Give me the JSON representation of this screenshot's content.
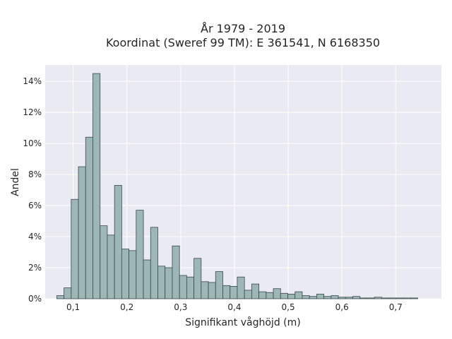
{
  "chart_data": {
    "type": "bar",
    "title_line1": "År 1979 - 2019",
    "title_line2": "Koordinat (Sweref 99 TM): E 361541, N 6168350",
    "xlabel": "Signifikant våghöjd (m)",
    "ylabel": "Andel",
    "xlim": [
      0.048,
      0.785
    ],
    "ylim": [
      0,
      0.1505
    ],
    "x_ticks": [
      {
        "value": 0.1,
        "label": "0,1"
      },
      {
        "value": 0.2,
        "label": "0,2"
      },
      {
        "value": 0.3,
        "label": "0,3"
      },
      {
        "value": 0.4,
        "label": "0,4"
      },
      {
        "value": 0.5,
        "label": "0,5"
      },
      {
        "value": 0.6,
        "label": "0,6"
      },
      {
        "value": 0.7,
        "label": "0,7"
      }
    ],
    "y_ticks": [
      {
        "value": 0.0,
        "label": "0%"
      },
      {
        "value": 0.02,
        "label": "2%"
      },
      {
        "value": 0.04,
        "label": "4%"
      },
      {
        "value": 0.06,
        "label": "6%"
      },
      {
        "value": 0.08,
        "label": "8%"
      },
      {
        "value": 0.1,
        "label": "10%"
      },
      {
        "value": 0.12,
        "label": "12%"
      },
      {
        "value": 0.14,
        "label": "14%"
      }
    ],
    "grid": true,
    "bin_start": 0.0695,
    "bin_width": 0.01343,
    "values": [
      0.002,
      0.007,
      0.064,
      0.085,
      0.104,
      0.145,
      0.047,
      0.041,
      0.073,
      0.032,
      0.031,
      0.057,
      0.025,
      0.046,
      0.021,
      0.02,
      0.034,
      0.015,
      0.014,
      0.026,
      0.011,
      0.0105,
      0.0175,
      0.0085,
      0.008,
      0.014,
      0.0055,
      0.0095,
      0.0045,
      0.004,
      0.0065,
      0.0035,
      0.003,
      0.0045,
      0.002,
      0.0015,
      0.003,
      0.0015,
      0.002,
      0.001,
      0.001,
      0.0015,
      0.0005,
      0.0005,
      0.001,
      0.0005,
      0.0005,
      0.0005,
      0.0005,
      0.0005
    ],
    "colors": {
      "bar_fill": "#9db6b6",
      "bar_edge": "#3a4a48",
      "plot_bg": "#eaeaf2",
      "grid": "#ffffff"
    }
  }
}
